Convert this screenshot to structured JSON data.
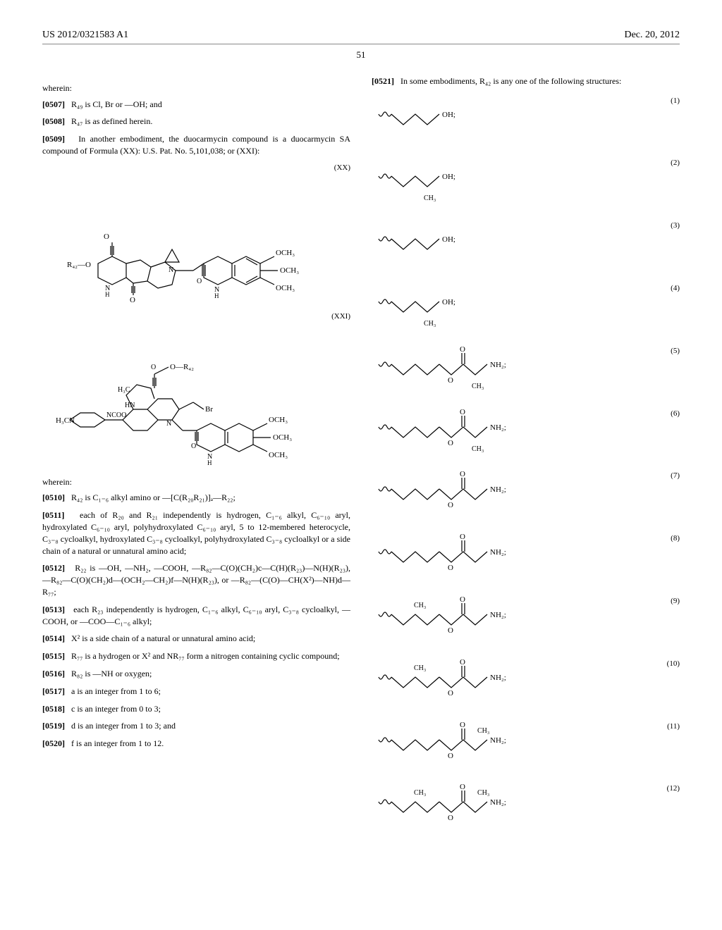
{
  "header": {
    "pub_number": "US 2012/0321583 A1",
    "pub_date": "Dec. 20, 2012"
  },
  "page_number": "51",
  "left_column": {
    "wherein1": "wherein:",
    "p0507": {
      "num": "[0507]",
      "text": "R₄₉ is Cl, Br or —OH; and"
    },
    "p0508": {
      "num": "[0508]",
      "text": "R₄₇ is as defined herein."
    },
    "p0509": {
      "num": "[0509]",
      "text": "In another embodiment, the duocarmycin compound is a duocarmycin SA compound of Formula (XX): U.S. Pat. No. 5,101,038; or (XXI):"
    },
    "formula_xx_label": "(XX)",
    "formula_xxi_label": "(XXI)",
    "wherein2": "wherein:",
    "p0510": {
      "num": "[0510]",
      "text": "R₄₂ is C₁₋₆ alkyl amino or —[C(R₂₀R₂₁)]ₐ—R₂₂;"
    },
    "p0511": {
      "num": "[0511]",
      "text": "each of R₂₀ and R₂₁ independently is hydrogen, C₁₋₆ alkyl, C₆₋₁₀ aryl, hydroxylated C₆₋₁₀ aryl, polyhydroxylated C₆₋₁₀ aryl, 5 to 12-membered heterocycle, C₃₋₈ cycloalkyl, hydroxylated C₃₋₈ cycloalkyl, polyhydroxylated C₃₋₈ cycloalkyl or a side chain of a natural or unnatural amino acid;"
    },
    "p0512": {
      "num": "[0512]",
      "text": "R₂₂ is —OH, —NH₂, —COOH, —R₈₂—C(O)(CH₂)c—C(H)(R₂₃)—N(H)(R₂₃), —R₈₂—C(O)(CH₂)d—(OCH₂—CH₂)f—N(H)(R₂₃), or —R₈₂—(C(O)—CH(X²)—NH)d—R₇₇;"
    },
    "p0513": {
      "num": "[0513]",
      "text": "each R₂₃ independently is hydrogen, C₁₋₆ alkyl, C₆₋₁₀ aryl, C₃₋₈ cycloalkyl, —COOH, or —COO—C₁₋₆ alkyl;"
    },
    "p0514": {
      "num": "[0514]",
      "text": "X² is a side chain of a natural or unnatural amino acid;"
    },
    "p0515": {
      "num": "[0515]",
      "text": "R₇₇ is a hydrogen or X² and NR₇₇ form a nitrogen containing cyclic compound;"
    },
    "p0516": {
      "num": "[0516]",
      "text": "R₈₂ is —NH or oxygen;"
    },
    "p0517": {
      "num": "[0517]",
      "text": "a is an integer from 1 to 6;"
    },
    "p0518": {
      "num": "[0518]",
      "text": "c is an integer from 0 to 3;"
    },
    "p0519": {
      "num": "[0519]",
      "text": "d is an integer from 1 to 3; and"
    },
    "p0520": {
      "num": "[0520]",
      "text": "f is an integer from 1 to 12."
    }
  },
  "right_column": {
    "p0521": {
      "num": "[0521]",
      "text": "In some embodiments, R₄₂ is any one of the following structures:"
    },
    "structures": [
      {
        "num": "(1)",
        "caption_right": "OH;"
      },
      {
        "num": "(2)",
        "caption_right": "OH;",
        "caption_below": "CH₃"
      },
      {
        "num": "(3)",
        "caption_right": "OH;"
      },
      {
        "num": "(4)",
        "caption_right": "OH;",
        "caption_below": "CH₃"
      },
      {
        "num": "(5)",
        "caption_right": "NH₂;",
        "caption_below": "CH₃",
        "has_ester": true
      },
      {
        "num": "(6)",
        "caption_right": "NH₂;",
        "caption_below": "CH₃",
        "has_ester": true
      },
      {
        "num": "(7)",
        "caption_right": "NH₂;",
        "has_ester": true
      },
      {
        "num": "(8)",
        "caption_right": "NH₂;",
        "has_ester": true
      },
      {
        "num": "(9)",
        "caption_right": "NH₂;",
        "caption_above": "CH₃",
        "has_ester": true
      },
      {
        "num": "(10)",
        "caption_right": "NH₂;",
        "caption_above": "CH₃",
        "has_ester": true
      },
      {
        "num": "(11)",
        "caption_right": "NH₂;",
        "caption_above_right": "CH₃",
        "has_ester": true
      },
      {
        "num": "(12)",
        "caption_right": "NH₂;",
        "caption_above": "CH₃",
        "caption_above_right": "CH₃",
        "has_ester": true
      }
    ]
  },
  "chem_labels": {
    "r42o": "R₄₂—O",
    "och3": "OCH₃",
    "h3c": "H₃C",
    "h3cn": "H₃CN",
    "ncoo": "NCOO",
    "hn": "HN",
    "br": "Br",
    "o_r42": "O—R₄₂",
    "nh": "N\nH"
  }
}
